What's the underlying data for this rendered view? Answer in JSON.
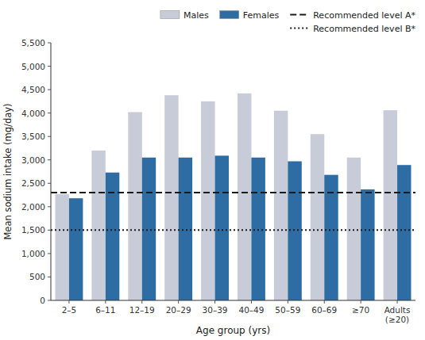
{
  "chart_data": {
    "type": "bar",
    "xlabel": "Age group (yrs)",
    "ylabel": "Mean sodium intake (mg/day)",
    "categories": [
      "2–5",
      "6–11",
      "12–19",
      "20–29",
      "30–39",
      "40–49",
      "50–59",
      "60–69",
      "≥70",
      "Adults\n(≥20)"
    ],
    "series": [
      {
        "name": "Males",
        "color": "#c8ccd8",
        "values": [
          2270,
          3200,
          4020,
          4380,
          4250,
          4420,
          4050,
          3550,
          3050,
          4060
        ]
      },
      {
        "name": "Females",
        "color": "#2e6da4",
        "values": [
          2180,
          2730,
          3050,
          3050,
          3090,
          3050,
          2970,
          2680,
          2370,
          2890
        ]
      }
    ],
    "reference_lines": [
      {
        "name": "Recommended level A*",
        "value": 2300,
        "color": "#1a1a1a",
        "line_style": "dashed"
      },
      {
        "name": "Recommended level B*",
        "value": 1500,
        "color": "#1a1a1a",
        "line_style": "dotted"
      }
    ],
    "ylim": [
      0,
      5500
    ],
    "yticks": [
      0,
      500,
      {
        "value": 1000,
        "label": "1,000"
      },
      {
        "value": 1500,
        "label": "1,500"
      },
      {
        "value": 2000,
        "label": "2,000"
      },
      {
        "value": 2500,
        "label": "2,500"
      },
      {
        "value": 3000,
        "label": "3,000"
      },
      {
        "value": 3500,
        "label": "3,500"
      },
      {
        "value": 4000,
        "label": "4,000"
      },
      {
        "value": 4500,
        "label": "4,500"
      },
      {
        "value": 5000,
        "label": "5,000"
      },
      {
        "value": 5500,
        "label": "5,500"
      }
    ],
    "grid": false,
    "legend": "upper right"
  }
}
